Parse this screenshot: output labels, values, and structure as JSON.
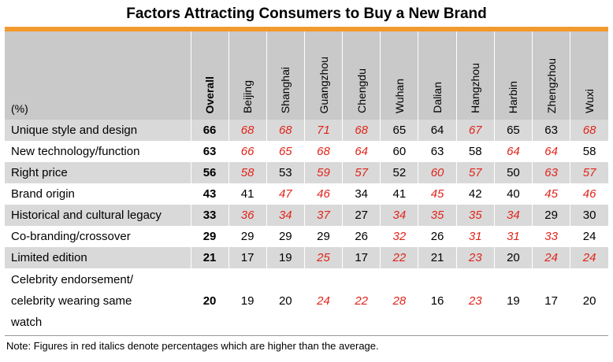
{
  "title": "Factors Attracting Consumers to Buy a New Brand",
  "unit_label": "(%)",
  "columns": [
    "Overall",
    "Beijing",
    "Shanghai",
    "Guangzhou",
    "Chengdu",
    "Wuhan",
    "Dalian",
    "Hangzhou",
    "Harbin",
    "Zhengzhou",
    "Wuxi"
  ],
  "highlight_color": "#e0241b",
  "rows": [
    {
      "label": "Unique style and design",
      "values": [
        66,
        68,
        68,
        71,
        68,
        65,
        64,
        67,
        65,
        63,
        68
      ],
      "above_average": [
        false,
        true,
        true,
        true,
        true,
        false,
        false,
        true,
        false,
        false,
        true
      ]
    },
    {
      "label": "New technology/function",
      "values": [
        63,
        66,
        65,
        68,
        64,
        60,
        63,
        58,
        64,
        64,
        58
      ],
      "above_average": [
        false,
        true,
        true,
        true,
        true,
        false,
        false,
        false,
        true,
        true,
        false
      ]
    },
    {
      "label": "Right price",
      "values": [
        56,
        58,
        53,
        59,
        57,
        52,
        60,
        57,
        50,
        63,
        57
      ],
      "above_average": [
        false,
        true,
        false,
        true,
        true,
        false,
        true,
        true,
        false,
        true,
        true
      ]
    },
    {
      "label": "Brand origin",
      "values": [
        43,
        41,
        47,
        46,
        34,
        41,
        45,
        42,
        40,
        45,
        46
      ],
      "above_average": [
        false,
        false,
        true,
        true,
        false,
        false,
        true,
        false,
        false,
        true,
        true
      ]
    },
    {
      "label": "Historical and cultural legacy",
      "values": [
        33,
        36,
        34,
        37,
        27,
        34,
        35,
        35,
        34,
        29,
        30
      ],
      "above_average": [
        false,
        true,
        true,
        true,
        false,
        true,
        true,
        true,
        true,
        false,
        false
      ]
    },
    {
      "label": "Co-branding/crossover",
      "values": [
        29,
        29,
        29,
        29,
        26,
        32,
        26,
        31,
        31,
        33,
        24
      ],
      "above_average": [
        false,
        false,
        false,
        false,
        false,
        true,
        false,
        true,
        true,
        true,
        false
      ]
    },
    {
      "label": "Limited edition",
      "values": [
        21,
        17,
        19,
        25,
        17,
        22,
        21,
        23,
        20,
        24,
        24
      ],
      "above_average": [
        false,
        false,
        false,
        true,
        false,
        true,
        false,
        true,
        false,
        true,
        true
      ]
    },
    {
      "label_lines": [
        "Celebrity endorsement/",
        "celebrity wearing same",
        "watch"
      ],
      "values": [
        20,
        19,
        20,
        24,
        22,
        28,
        16,
        23,
        19,
        17,
        20
      ],
      "above_average": [
        false,
        false,
        false,
        true,
        true,
        true,
        false,
        true,
        false,
        false,
        false
      ]
    }
  ],
  "note": "Note: Figures in red italics denote percentages which are higher than the average."
}
